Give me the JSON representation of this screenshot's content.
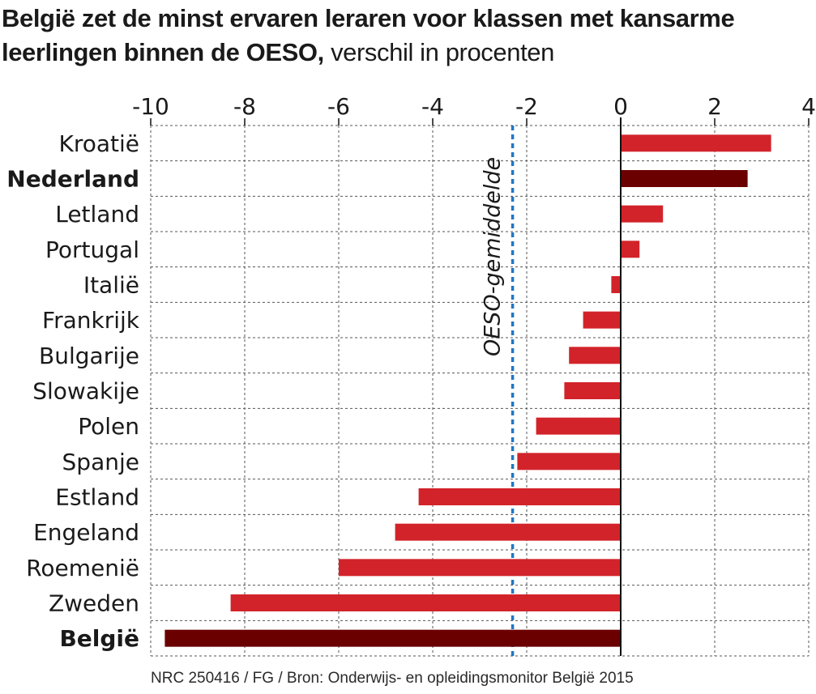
{
  "title": {
    "bold": "België zet de minst ervaren leraren voor klassen met kansarme leerlingen binnen de OESO,",
    "light": "verschil in procenten"
  },
  "source": "NRC 250416 / FG / Bron: Onderwijs- en opleidingsmonitor België 2015",
  "colors": {
    "bar": "#d2232a",
    "highlight": "#6b0000",
    "reference_line": "#1f77c4",
    "grid": "#555555"
  },
  "chart_data": {
    "type": "bar",
    "orientation": "horizontal",
    "title": "België zet de minst ervaren leraren voor klassen met kansarme leerlingen binnen de OESO, verschil in procenten",
    "xlabel": "",
    "ylabel": "",
    "xlim": [
      -10,
      4
    ],
    "xticks": [
      -10,
      -8,
      -6,
      -4,
      -2,
      0,
      2,
      4
    ],
    "grid": true,
    "categories": [
      "Kroatië",
      "Nederland",
      "Letland",
      "Portugal",
      "Italië",
      "Frankrijk",
      "Bulgarije",
      "Slowakije",
      "Polen",
      "Spanje",
      "Estland",
      "Engeland",
      "Roemenië",
      "Zweden",
      "België"
    ],
    "values": [
      3.2,
      2.7,
      0.9,
      0.4,
      -0.2,
      -0.8,
      -1.1,
      -1.2,
      -1.8,
      -2.2,
      -4.3,
      -4.8,
      -6.0,
      -8.3,
      -9.7
    ],
    "highlighted": [
      "Nederland",
      "België"
    ],
    "reference_line": {
      "label": "OESO-gemiddelde",
      "value": -2.3
    }
  }
}
